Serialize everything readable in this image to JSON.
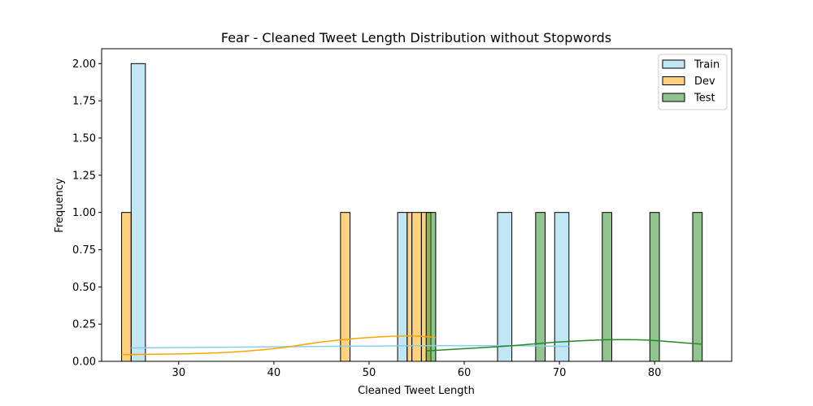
{
  "chart_data": {
    "type": "bar",
    "title": "Fear - Cleaned Tweet Length Distribution without Stopwords",
    "xlabel": "Cleaned Tweet Length",
    "ylabel": "Frequency",
    "xlim": [
      21.9,
      88.1
    ],
    "ylim": [
      0,
      2.1
    ],
    "xticks": [
      "30",
      "40",
      "50",
      "60",
      "70",
      "80"
    ],
    "xtick_values": [
      30,
      40,
      50,
      60,
      70,
      80
    ],
    "yticks": [
      "0.00",
      "0.25",
      "0.50",
      "0.75",
      "1.00",
      "1.25",
      "1.50",
      "1.75",
      "2.00"
    ],
    "ytick_values": [
      0,
      0.25,
      0.5,
      0.75,
      1.0,
      1.25,
      1.5,
      1.75,
      2.0
    ],
    "grid": false,
    "legend_position": "top-right",
    "series": [
      {
        "name": "Train",
        "color": "#87CEEB",
        "bins": [
          {
            "x0": 25.0,
            "x1": 26.5,
            "count": 2
          },
          {
            "x0": 53.0,
            "x1": 54.0,
            "count": 1
          },
          {
            "x0": 63.5,
            "x1": 65.0,
            "count": 1
          },
          {
            "x0": 69.5,
            "x1": 71.0,
            "count": 1
          }
        ],
        "kde_x": [
          25,
          35,
          45,
          55,
          65,
          71
        ],
        "kde_y": [
          0.09,
          0.095,
          0.1,
          0.105,
          0.105,
          0.1
        ]
      },
      {
        "name": "Dev",
        "color": "#FFA500",
        "bins": [
          {
            "x0": 24.0,
            "x1": 25.0,
            "count": 1
          },
          {
            "x0": 47.0,
            "x1": 48.0,
            "count": 1
          },
          {
            "x0": 54.0,
            "x1": 54.5,
            "count": 1
          },
          {
            "x0": 54.5,
            "x1": 55.5,
            "count": 1
          },
          {
            "x0": 55.5,
            "x1": 56.5,
            "count": 1
          }
        ],
        "kde_x": [
          24,
          30,
          35,
          40,
          45,
          48,
          50,
          53,
          55,
          57
        ],
        "kde_y": [
          0.045,
          0.05,
          0.06,
          0.085,
          0.13,
          0.15,
          0.16,
          0.17,
          0.17,
          0.16
        ]
      },
      {
        "name": "Test",
        "color": "#228B22",
        "bins": [
          {
            "x0": 56.0,
            "x1": 57.0,
            "count": 1
          },
          {
            "x0": 67.5,
            "x1": 68.5,
            "count": 1
          },
          {
            "x0": 74.5,
            "x1": 75.5,
            "count": 1
          },
          {
            "x0": 79.5,
            "x1": 80.5,
            "count": 1
          },
          {
            "x0": 84.0,
            "x1": 85.0,
            "count": 1
          }
        ],
        "kde_x": [
          56,
          60,
          65,
          70,
          75,
          78,
          80,
          83,
          85
        ],
        "kde_y": [
          0.07,
          0.085,
          0.105,
          0.13,
          0.145,
          0.145,
          0.14,
          0.125,
          0.115
        ]
      }
    ]
  }
}
